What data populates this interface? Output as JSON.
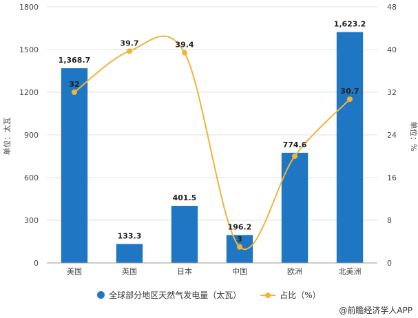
{
  "chart_data": {
    "type": "bar",
    "categories": [
      "美国",
      "英国",
      "日本",
      "中国",
      "欧洲",
      "北美洲"
    ],
    "series": [
      {
        "name": "全球部分地区天然气发电量（太瓦）",
        "type": "bar",
        "axis": "left",
        "values": [
          1368.7,
          133.3,
          401.5,
          196.2,
          774.6,
          1623.2
        ],
        "labels": [
          "1,368.7",
          "133.3",
          "401.5",
          "196.2",
          "774.6",
          "1,623.2"
        ]
      },
      {
        "name": "占比（%）",
        "type": "line",
        "axis": "right",
        "values": [
          32,
          39.7,
          39.4,
          3,
          20,
          30.7
        ],
        "labels": [
          "32",
          "39.7",
          "39.4",
          "3",
          "",
          "30.7"
        ]
      }
    ],
    "ylabel": "单位：太瓦",
    "ylabel_right": "单位：%",
    "ylim": [
      0,
      1800
    ],
    "yticks": [
      0,
      300,
      600,
      900,
      1200,
      1500,
      1800
    ],
    "ylim_right": [
      0,
      48
    ],
    "yticks_right": [
      0,
      8,
      16,
      24,
      32,
      40,
      48
    ],
    "legend_position": "bottom",
    "grid": true
  },
  "colors": {
    "bar": "#1f77c4",
    "line": "#f0b43a",
    "grid": "#e0e0e0"
  },
  "source": "@前瞻经济学人APP"
}
